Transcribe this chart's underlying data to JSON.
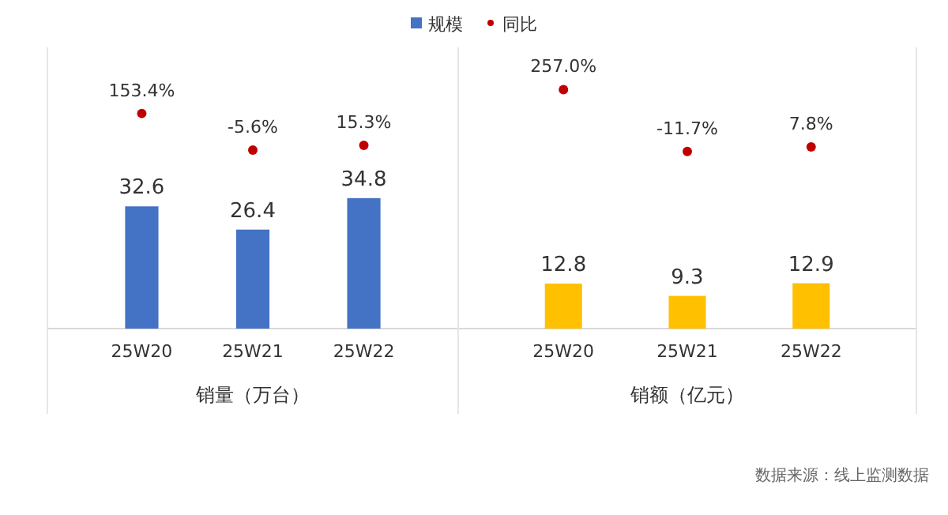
{
  "chart_data": [
    {
      "type": "bar",
      "categories": [
        "25W20",
        "25W21",
        "25W22"
      ],
      "xlabel": "销量（万台）",
      "ylim": [
        0,
        75
      ],
      "y2lim": [
        -780,
        440
      ],
      "tick_labels": "x",
      "legend": "top",
      "data_labels": true,
      "series": [
        {
          "name": "规模",
          "color": "#4472c4",
          "values": [
            32.6,
            26.4,
            34.8
          ]
        },
        {
          "name": "同比",
          "type": "scatter",
          "axis": "y2",
          "color": "#c00000",
          "values": [
            153.4,
            -5.6,
            15.3
          ],
          "value_labels": [
            "153.4%",
            "-5.6%",
            "15.3%"
          ]
        }
      ]
    },
    {
      "type": "bar",
      "categories": [
        "25W20",
        "25W21",
        "25W22"
      ],
      "xlabel": "销额（亿元）",
      "ylim": [
        0,
        80
      ],
      "y2lim": [
        -780,
        440
      ],
      "tick_labels": "x",
      "data_labels": true,
      "annotations": [
        "数据来源：线上监测数据"
      ],
      "series": [
        {
          "color": "#ffc000",
          "values": [
            12.8,
            9.3,
            12.9
          ]
        },
        {
          "type": "scatter",
          "axis": "y2",
          "color": "#c00000",
          "values": [
            257.0,
            -11.7,
            7.8
          ],
          "value_labels": [
            "257.0%",
            "-11.7%",
            "7.8%"
          ]
        }
      ]
    }
  ]
}
